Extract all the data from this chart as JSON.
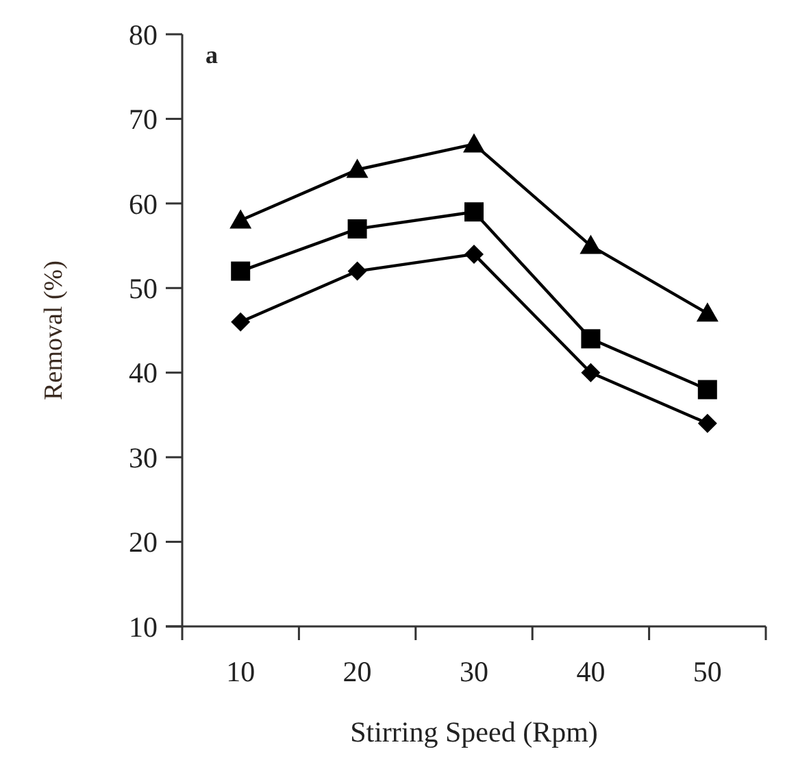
{
  "chart_data": {
    "type": "line",
    "xlabel": "Stirring Speed (Rpm)",
    "ylabel": "Removal (%)",
    "annotations": [
      "a"
    ],
    "categories": [
      "10",
      "20",
      "30",
      "40",
      "50"
    ],
    "ylim": [
      10,
      80
    ],
    "yticks": [
      10,
      20,
      30,
      40,
      50,
      60,
      70,
      80
    ],
    "line_style": "solid",
    "series": [
      {
        "color": "#000000",
        "marker": "triangle",
        "values": [
          58,
          64,
          67,
          55,
          47
        ]
      },
      {
        "color": "#000000",
        "marker": "square",
        "values": [
          52,
          57,
          59,
          44,
          38
        ]
      },
      {
        "color": "#000000",
        "marker": "diamond",
        "values": [
          46,
          52,
          54,
          40,
          34
        ]
      }
    ]
  }
}
